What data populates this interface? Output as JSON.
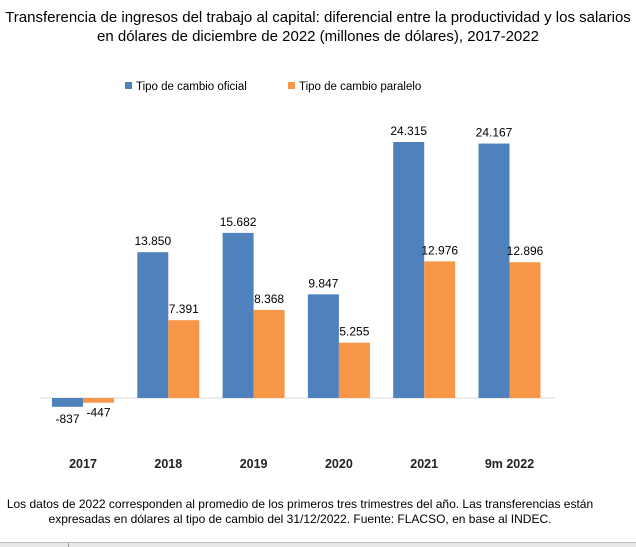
{
  "chart_data": {
    "type": "bar",
    "title": "Transferencia de ingresos del trabajo al capital: diferencial entre la productividad y los salarios en dólares de diciembre de 2022 (millones de dólares), 2017-2022",
    "categories": [
      "2017",
      "2018",
      "2019",
      "2020",
      "2021",
      "9m 2022"
    ],
    "series": [
      {
        "name": "Tipo de cambio oficial",
        "color": "#4f81bd",
        "values": [
          -837,
          13850,
          15682,
          9847,
          24315,
          24167
        ],
        "labels": [
          "-837",
          "13.850",
          "15.682",
          "9.847",
          "24.315",
          "24.167"
        ]
      },
      {
        "name": "Tipo de cambio paralelo",
        "color": "#f79646",
        "values": [
          -447,
          7391,
          8368,
          5255,
          12976,
          12896
        ],
        "labels": [
          "-447",
          "7.391",
          "8.368",
          "5.255",
          "12.976",
          "12.896"
        ]
      }
    ],
    "legend": "top",
    "grid": false
  },
  "note": "Los datos de 2022 corresponden al promedio de los primeros tres trimestres del año. Las transferencias están expresadas en dólares al tipo de cambio del 31/12/2022. Fuente: FLACSO, en base al INDEC."
}
